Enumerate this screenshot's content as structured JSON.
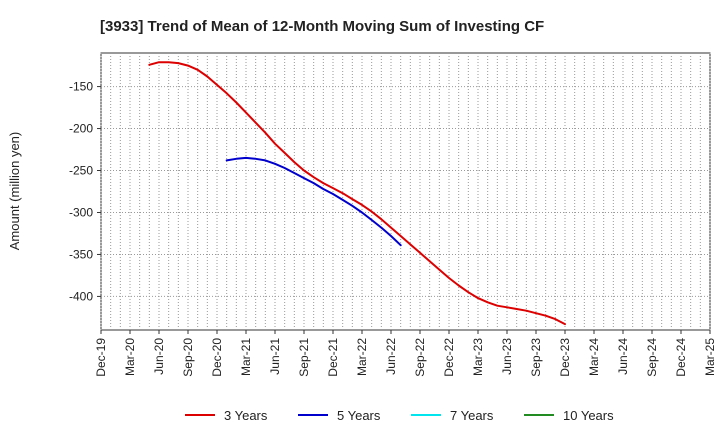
{
  "chart_data": {
    "type": "line",
    "title": "[3933]  Trend of Mean of 12-Month Moving Sum of Investing CF",
    "xlabel": "",
    "ylabel": "Amount (million yen)",
    "ylim": [
      -440,
      -110
    ],
    "yticks": [
      -150,
      -200,
      -250,
      -300,
      -350,
      -400
    ],
    "x_tick_labels": [
      "Dec-19",
      "Mar-20",
      "Jun-20",
      "Sep-20",
      "Dec-20",
      "Mar-21",
      "Jun-21",
      "Sep-21",
      "Dec-21",
      "Mar-22",
      "Jun-22",
      "Sep-22",
      "Dec-22",
      "Mar-23",
      "Jun-23",
      "Sep-23",
      "Dec-23",
      "Mar-24",
      "Jun-24",
      "Sep-24",
      "Dec-24",
      "Mar-25"
    ],
    "grid": true,
    "legend_position": "bottom",
    "series": [
      {
        "name": "3 Years",
        "color": "#dd0000",
        "start_index": 5,
        "values": [
          -124,
          -121,
          -121,
          -122,
          -125,
          -130,
          -138,
          -148,
          -158,
          -169,
          -181,
          -193,
          -205,
          -218,
          -229,
          -240,
          -250,
          -258,
          -265,
          -271,
          -277,
          -284,
          -291,
          -299,
          -308,
          -318,
          -328,
          -338,
          -348,
          -358,
          -368,
          -378,
          -387,
          -395,
          -402,
          -407,
          -411,
          -413,
          -415,
          -417,
          -420,
          -423,
          -427,
          -433
        ]
      },
      {
        "name": "5 Years",
        "color": "#0000cc",
        "start_index": 13,
        "values": [
          -238,
          -236,
          -235,
          -236,
          -238,
          -242,
          -247,
          -253,
          -259,
          -265,
          -272,
          -278,
          -285,
          -292,
          -300,
          -309,
          -318,
          -328,
          -339
        ]
      },
      {
        "name": "7 Years",
        "color": "#00e5ee",
        "start_index": 0,
        "values": []
      },
      {
        "name": "10 Years",
        "color": "#228b22",
        "start_index": 0,
        "values": []
      }
    ]
  }
}
